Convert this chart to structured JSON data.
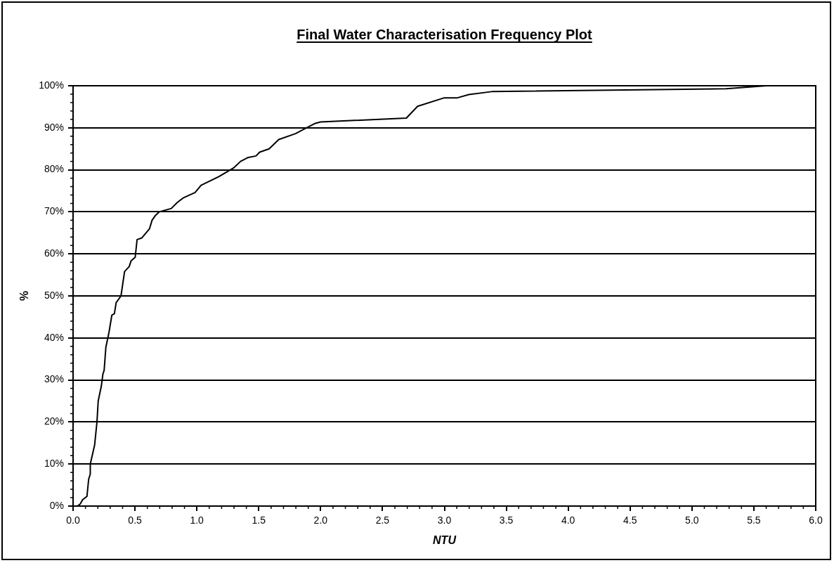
{
  "chart_data": {
    "type": "line",
    "title": "Final Water Characterisation Frequency Plot",
    "xlabel": "NTU",
    "ylabel": "%",
    "x": [
      0.035,
      0.058,
      0.077,
      0.112,
      0.126,
      0.139,
      0.139,
      0.174,
      0.193,
      0.203,
      0.228,
      0.241,
      0.251,
      0.265,
      0.29,
      0.303,
      0.313,
      0.334,
      0.348,
      0.387,
      0.416,
      0.454,
      0.468,
      0.502,
      0.517,
      0.556,
      0.618,
      0.638,
      0.667,
      0.696,
      0.793,
      0.841,
      0.889,
      0.986,
      1.034,
      1.179,
      1.295,
      1.353,
      1.41,
      1.478,
      1.507,
      1.584,
      1.662,
      1.797,
      1.894,
      1.952,
      2.0,
      2.693,
      2.783,
      2.995,
      3.101,
      3.198,
      3.381,
      5.275,
      5.6
    ],
    "series": [
      {
        "color": "#000000",
        "values": [
          0,
          0.5,
          1.5,
          2.3,
          6.4,
          7.6,
          10,
          14.5,
          20,
          25,
          28.5,
          31.4,
          32.3,
          37.8,
          41.3,
          43.6,
          45.4,
          45.8,
          48.4,
          50,
          55.8,
          57,
          58.3,
          59.2,
          63.4,
          63.8,
          66,
          68,
          69.2,
          70,
          70.8,
          72.2,
          73.3,
          74.6,
          76.3,
          78.4,
          80.4,
          82,
          82.9,
          83.3,
          84.2,
          85,
          87.2,
          88.6,
          90.1,
          91,
          91.4,
          92.3,
          95.1,
          97.1,
          97.1,
          97.9,
          98.6,
          99.3,
          100
        ]
      }
    ],
    "xlim": [
      0,
      6
    ],
    "xticks": [
      {
        "value": 0,
        "label": "0.0"
      },
      {
        "value": 0.5,
        "label": "0.5"
      },
      {
        "value": 1,
        "label": "1.0"
      },
      {
        "value": 1.5,
        "label": "1.5"
      },
      {
        "value": 2,
        "label": "2.0"
      },
      {
        "value": 2.5,
        "label": "2.5"
      },
      {
        "value": 3,
        "label": "3.0"
      },
      {
        "value": 3.5,
        "label": "3.5"
      },
      {
        "value": 4,
        "label": "4.0"
      },
      {
        "value": 4.5,
        "label": "4.5"
      },
      {
        "value": 5,
        "label": "5.0"
      },
      {
        "value": 5.5,
        "label": "5.5"
      },
      {
        "value": 6,
        "label": "6.0"
      }
    ],
    "ylim": [
      0,
      100
    ],
    "yticks": [
      {
        "value": 0,
        "label": "0%"
      },
      {
        "value": 10,
        "label": "10%"
      },
      {
        "value": 20,
        "label": "20%"
      },
      {
        "value": 30,
        "label": "30%"
      },
      {
        "value": 40,
        "label": "40%"
      },
      {
        "value": 50,
        "label": "50%"
      },
      {
        "value": 60,
        "label": "60%"
      },
      {
        "value": 70,
        "label": "70%"
      },
      {
        "value": 80,
        "label": "80%"
      },
      {
        "value": 90,
        "label": "90%"
      },
      {
        "value": 100,
        "label": "100%"
      }
    ],
    "grid": "y",
    "legend": false,
    "marker": "none",
    "line_style": "solid"
  }
}
